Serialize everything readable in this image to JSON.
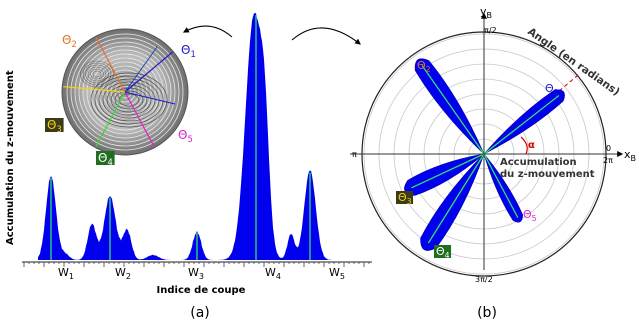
{
  "colors": {
    "profile_fill": "#0000ee",
    "peak_line": "#2ee36a",
    "theta1": "#1a1acc",
    "theta2": "#e8722a",
    "theta3_bg": "#3b3b1a",
    "theta3_fg": "#f3d21a",
    "theta4_bg": "#1f6f1f",
    "theta4_fg": "#ffffff",
    "theta5": "#dd22cc",
    "alpha": "#dd0000",
    "grid": "#c8c8c8"
  },
  "panel_a": {
    "caption": "(a)",
    "ylabel": "Accumulation du z-mouvement",
    "xlabel": "Indice de coupe",
    "windows": [
      {
        "base": "W",
        "sub": "1"
      },
      {
        "base": "W",
        "sub": "2"
      },
      {
        "base": "W",
        "sub": "3"
      },
      {
        "base": "W",
        "sub": "4"
      },
      {
        "base": "W",
        "sub": "5"
      }
    ],
    "inset_labels": [
      {
        "base": "Θ",
        "sub": "2",
        "key": "theta2"
      },
      {
        "base": "Θ",
        "sub": "1",
        "key": "theta1"
      },
      {
        "base": "Θ",
        "sub": "3",
        "key": "theta3"
      },
      {
        "base": "Θ",
        "sub": "4",
        "key": "theta4"
      },
      {
        "base": "Θ",
        "sub": "5",
        "key": "theta5"
      }
    ]
  },
  "panel_b": {
    "caption": "(b)",
    "y_axis": {
      "base": "y",
      "sub": "B"
    },
    "x_axis": {
      "base": "x",
      "sub": "B"
    },
    "angle_title": "Angle (en radians)",
    "radial_title_1": "Accumulation",
    "radial_title_2": "du z-mouvement",
    "angle_ticks": {
      "top": "π/2",
      "left": "π",
      "bottom": "3π/2",
      "right_top": "0",
      "right_bottom": "2π"
    },
    "alpha": "α",
    "theta_labels": [
      {
        "base": "Θ",
        "sub": "1",
        "key": "theta1"
      },
      {
        "base": "Θ",
        "sub": "2",
        "key": "theta2"
      },
      {
        "base": "Θ",
        "sub": "3",
        "key": "theta3"
      },
      {
        "base": "Θ",
        "sub": "4",
        "key": "theta4"
      },
      {
        "base": "Θ",
        "sub": "5",
        "key": "theta5"
      }
    ]
  }
}
